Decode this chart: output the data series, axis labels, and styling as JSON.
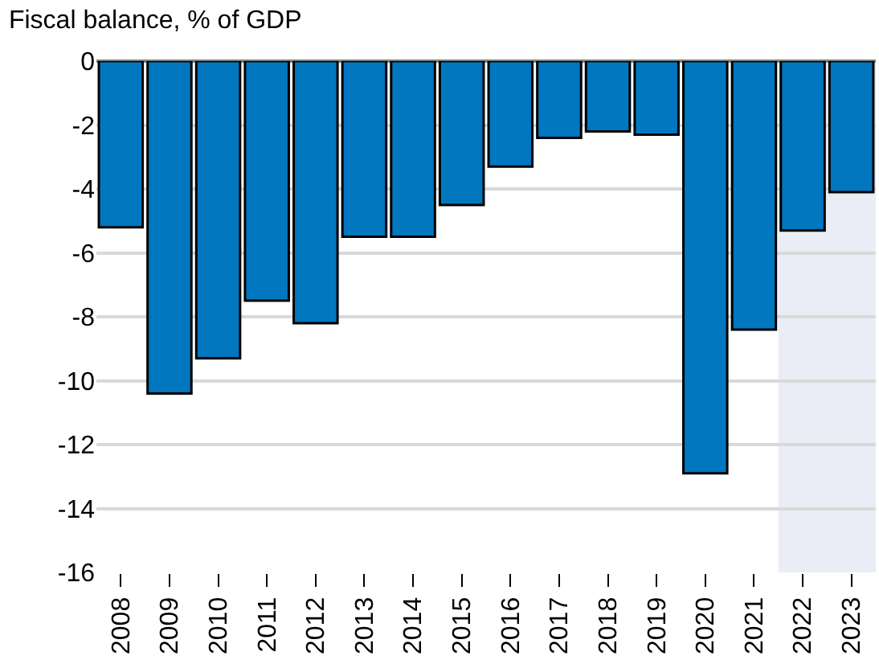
{
  "chart_data": {
    "type": "bar",
    "title": "Fiscal balance, % of GDP",
    "categories": [
      "2008",
      "2009",
      "2010",
      "2011",
      "2012",
      "2013",
      "2014",
      "2015",
      "2016",
      "2017",
      "2018",
      "2019",
      "2020",
      "2021",
      "2022",
      "2023"
    ],
    "values": [
      -5.2,
      -10.4,
      -9.3,
      -7.5,
      -8.2,
      -5.5,
      -5.5,
      -4.5,
      -3.3,
      -2.4,
      -2.2,
      -2.3,
      -12.9,
      -8.4,
      -5.3,
      -4.1
    ],
    "color": "#0077bf",
    "ylim": [
      -16,
      0
    ],
    "yticks": [
      -16,
      -14,
      -12,
      -10,
      -8,
      -6,
      -4,
      -2,
      0
    ],
    "grid": "y",
    "bands": [
      {
        "axis": "x",
        "from": "2022",
        "to": "2023",
        "color": "#eaedf5"
      }
    ]
  }
}
